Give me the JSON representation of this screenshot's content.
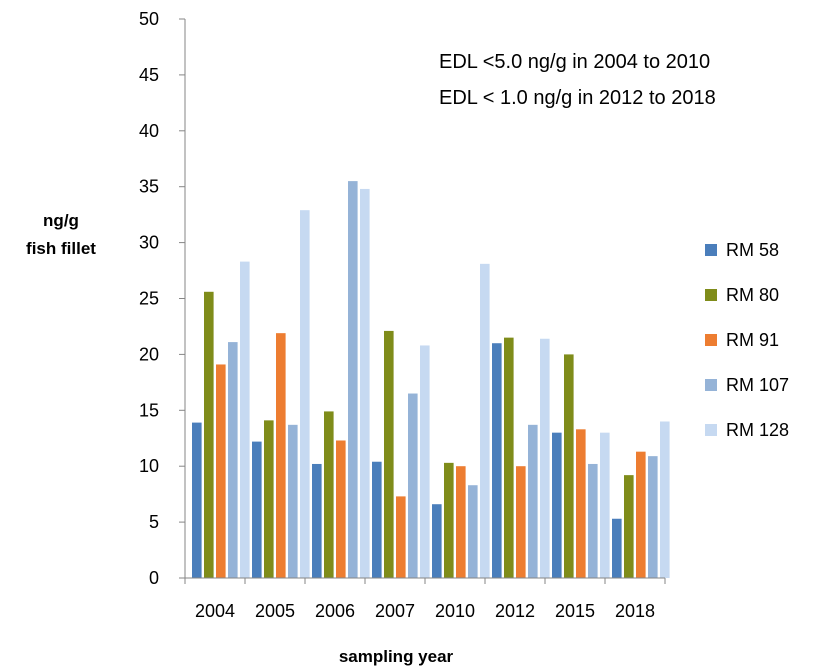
{
  "chart_data": {
    "type": "bar",
    "categories": [
      "2004",
      "2005",
      "2006",
      "2007",
      "2010",
      "2012",
      "2015",
      "2018"
    ],
    "series": [
      {
        "name": "RM 58",
        "color": "#4a7ebb",
        "values": [
          13.9,
          12.2,
          10.2,
          10.4,
          6.6,
          21.0,
          13.0,
          5.3
        ]
      },
      {
        "name": "RM 80",
        "color": "#7f8c1a",
        "values": [
          25.6,
          14.1,
          14.9,
          22.1,
          10.3,
          21.5,
          20.0,
          9.2
        ]
      },
      {
        "name": "RM 91",
        "color": "#ed7d31",
        "values": [
          19.1,
          21.9,
          12.3,
          7.3,
          10.0,
          10.0,
          13.3,
          11.3
        ]
      },
      {
        "name": "RM 107",
        "color": "#95b3d7",
        "values": [
          21.1,
          13.7,
          35.5,
          16.5,
          8.3,
          13.7,
          10.2,
          10.9
        ]
      },
      {
        "name": "RM 128",
        "color": "#c6d9f1",
        "values": [
          28.3,
          32.9,
          34.8,
          20.8,
          28.1,
          21.4,
          13.0,
          14.0
        ]
      }
    ],
    "xlabel": "sampling year",
    "ylabel": [
      "ng/g",
      "fish fillet"
    ],
    "ylim": [
      0,
      50
    ],
    "yticks": [
      0,
      5,
      10,
      15,
      20,
      25,
      30,
      35,
      40,
      45,
      50
    ],
    "annotations": [
      "EDL <5.0 ng/g  in 2004 to 2010",
      "EDL < 1.0 ng/g in 2012 to 2018"
    ],
    "legend_placement": "right",
    "grid": false
  }
}
